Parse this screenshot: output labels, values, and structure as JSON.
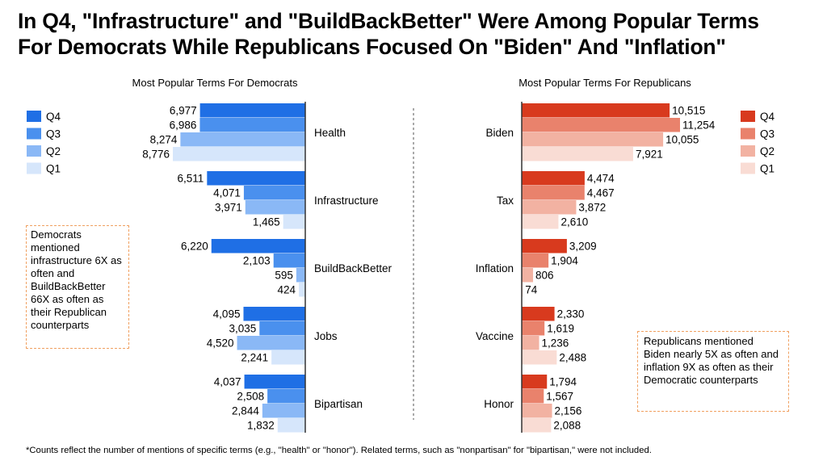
{
  "title": {
    "line1": "In Q4, \"Infrastructure\" and \"BuildBackBetter\" Were Among Popular Terms",
    "line2": "For Democrats While Republicans Focused On \"Biden\" And \"Inflation\""
  },
  "chart_data": [
    {
      "type": "bar",
      "orientation": "horizontal",
      "title": "Most Popular Terms For Democrats",
      "categories": [
        "Health",
        "Infrastructure",
        "BuildBackBetter",
        "Jobs",
        "Bipartisan"
      ],
      "series": [
        {
          "name": "Q4",
          "color": "#1f6fe5",
          "values": [
            6977,
            6511,
            6220,
            4095,
            4037
          ]
        },
        {
          "name": "Q3",
          "color": "#4a90ee",
          "values": [
            6986,
            4071,
            2103,
            3035,
            2508
          ]
        },
        {
          "name": "Q2",
          "color": "#8ab8f6",
          "values": [
            8274,
            3971,
            595,
            4520,
            2844
          ]
        },
        {
          "name": "Q1",
          "color": "#d6e6fb",
          "values": [
            8776,
            1465,
            424,
            2241,
            1832
          ]
        }
      ],
      "xlim": [
        0,
        11500
      ],
      "legend": "left"
    },
    {
      "type": "bar",
      "orientation": "horizontal",
      "title": "Most Popular Terms For Republicans",
      "categories": [
        "Biden",
        "Tax",
        "Inflation",
        "Vaccine",
        "Honor"
      ],
      "series": [
        {
          "name": "Q4",
          "color": "#d83a1e",
          "values": [
            10515,
            4474,
            3209,
            2330,
            1794
          ]
        },
        {
          "name": "Q3",
          "color": "#e9826c",
          "values": [
            11254,
            4467,
            1904,
            1619,
            1567
          ]
        },
        {
          "name": "Q2",
          "color": "#f2b2a2",
          "values": [
            10055,
            3872,
            806,
            1236,
            2156
          ]
        },
        {
          "name": "Q1",
          "color": "#f9dcd4",
          "values": [
            7921,
            2610,
            74,
            2488,
            2088
          ]
        }
      ],
      "xlim": [
        0,
        11500
      ],
      "legend": "right"
    }
  ],
  "notes": {
    "democrats": "Democrats mentioned infrastructure 6X as often and BuildBackBetter 66X as often as their Republican counterparts",
    "republicans": "Republicans mentioned Biden nearly 5X as often and inflation 9X as often as their Democratic counterparts"
  },
  "footnote": "*Counts reflect the number of mentions of specific terms (e.g., \"health\" or \"honor\"). Related terms, such as \"nonpartisan\" for \"bipartisan,\" were not included."
}
